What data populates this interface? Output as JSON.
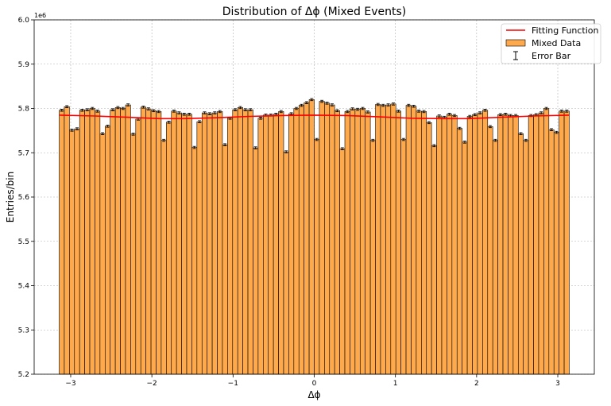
{
  "chart_data": {
    "type": "bar",
    "title": "Distribution of Δϕ (Mixed Events)",
    "xlabel": "Δϕ",
    "ylabel": "Entries/bin",
    "y_offset_label": "1e6",
    "xlim": [
      -3.45,
      3.45
    ],
    "ylim": [
      5.2,
      6.0
    ],
    "x_ticks": [
      -3,
      -2,
      -1,
      0,
      1,
      2,
      3
    ],
    "x_tick_labels": [
      "−3",
      "−2",
      "−1",
      "0",
      "1",
      "2",
      "3"
    ],
    "y_ticks": [
      5.2,
      5.3,
      5.4,
      5.5,
      5.6,
      5.7,
      5.8,
      5.9,
      6.0
    ],
    "y_tick_labels": [
      "5.2",
      "5.3",
      "5.4",
      "5.5",
      "5.6",
      "5.7",
      "5.8",
      "5.9",
      "6.0"
    ],
    "grid": true,
    "legend_position": "top-right",
    "bin_range": [
      -3.1416,
      3.1416
    ],
    "series": [
      {
        "name": "Mixed Data",
        "kind": "bar",
        "color": "#FFA94D",
        "edgecolor": "#000000",
        "values": [
          5.796,
          5.804,
          5.751,
          5.754,
          5.796,
          5.797,
          5.8,
          5.794,
          5.743,
          5.76,
          5.797,
          5.802,
          5.8,
          5.808,
          5.742,
          5.776,
          5.803,
          5.799,
          5.795,
          5.793,
          5.728,
          5.769,
          5.794,
          5.79,
          5.787,
          5.787,
          5.712,
          5.77,
          5.79,
          5.788,
          5.79,
          5.793,
          5.718,
          5.778,
          5.797,
          5.802,
          5.797,
          5.797,
          5.711,
          5.778,
          5.785,
          5.785,
          5.787,
          5.793,
          5.702,
          5.788,
          5.8,
          5.807,
          5.813,
          5.82,
          5.73,
          5.816,
          5.812,
          5.808,
          5.795,
          5.709,
          5.793,
          5.799,
          5.798,
          5.8,
          5.792,
          5.728,
          5.809,
          5.807,
          5.808,
          5.81,
          5.794,
          5.73,
          5.807,
          5.805,
          5.794,
          5.793,
          5.768,
          5.716,
          5.783,
          5.78,
          5.787,
          5.784,
          5.755,
          5.724,
          5.782,
          5.786,
          5.79,
          5.796,
          5.759,
          5.728,
          5.786,
          5.787,
          5.784,
          5.784,
          5.743,
          5.728,
          5.784,
          5.786,
          5.79,
          5.8,
          5.752,
          5.746,
          5.794,
          5.794
        ]
      },
      {
        "name": "Fitting Function",
        "kind": "line",
        "color": "#FF0000",
        "x": [
          -3.14,
          -2.7,
          -2.3,
          -1.9,
          -1.6,
          -1.2,
          -0.8,
          -0.4,
          0,
          0.4,
          0.8,
          1.2,
          1.6,
          1.9,
          2.3,
          2.7,
          3.14
        ],
        "values": [
          5.785,
          5.783,
          5.78,
          5.777,
          5.777,
          5.779,
          5.782,
          5.784,
          5.785,
          5.784,
          5.781,
          5.778,
          5.777,
          5.777,
          5.78,
          5.783,
          5.785
        ]
      },
      {
        "name": "Error Bar",
        "kind": "errorbar",
        "color": "#000000",
        "error": 0.0024
      }
    ],
    "legend": [
      {
        "label": "Fitting Function",
        "marker": "line",
        "color": "#FF0000"
      },
      {
        "label": "Mixed Data",
        "marker": "patch",
        "color": "#FFA94D"
      },
      {
        "label": "Error Bar",
        "marker": "errorbar",
        "color": "#000000"
      }
    ]
  }
}
